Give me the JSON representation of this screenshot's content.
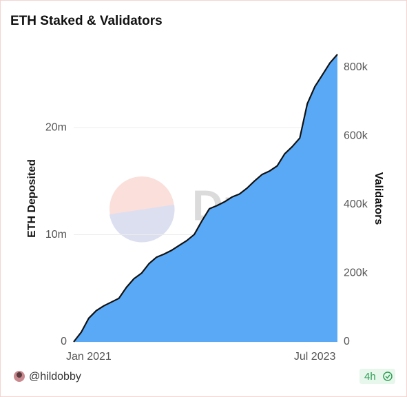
{
  "title": "ETH Staked & Validators",
  "watermark": "Dune",
  "footer": {
    "author": "@hildobby",
    "age": "4h"
  },
  "chart_data": {
    "type": "area",
    "ylabel": "ETH Deposited",
    "y2label": "Validators",
    "x": [
      "2020-11",
      "2020-12",
      "2021-01",
      "2021-02",
      "2021-03",
      "2021-04",
      "2021-05",
      "2021-06",
      "2021-07",
      "2021-08",
      "2021-09",
      "2021-10",
      "2021-11",
      "2021-12",
      "2022-01",
      "2022-02",
      "2022-03",
      "2022-04",
      "2022-05",
      "2022-06",
      "2022-07",
      "2022-08",
      "2022-09",
      "2022-10",
      "2022-11",
      "2022-12",
      "2023-01",
      "2023-02",
      "2023-03",
      "2023-04",
      "2023-05",
      "2023-06",
      "2023-07",
      "2023-08",
      "2023-09",
      "2023-10"
    ],
    "xlim": [
      "2020-11",
      "2023-10"
    ],
    "xticks": [
      {
        "value": "2021-01",
        "label": "Jan 2021"
      },
      {
        "value": "2023-07",
        "label": "Jul 2023"
      }
    ],
    "ylim": [
      0,
      28500000
    ],
    "yticks": [
      0,
      {
        "value": 10000000,
        "label": "10m"
      },
      {
        "value": 20000000,
        "label": "20m"
      }
    ],
    "y2lim": [
      0,
      890000
    ],
    "y2ticks": [
      0,
      {
        "value": 200000,
        "label": "200k"
      },
      {
        "value": 400000,
        "label": "400k"
      },
      {
        "value": 600000,
        "label": "600k"
      },
      {
        "value": 800000,
        "label": "800k"
      }
    ],
    "grid": true,
    "series": [
      {
        "color": "#5aa9f6",
        "values": [
          0,
          900000,
          2200000,
          2900000,
          3350000,
          3700000,
          4050000,
          5100000,
          5900000,
          6400000,
          7300000,
          7900000,
          8200000,
          8550000,
          9000000,
          9450000,
          10000000,
          11250000,
          12400000,
          12700000,
          13050000,
          13500000,
          13800000,
          14350000,
          15000000,
          15600000,
          15950000,
          16400000,
          17550000,
          18200000,
          19000000,
          22200000,
          23800000,
          24900000,
          26000000,
          26800000
        ]
      },
      {
        "color": "#111111",
        "axis": "y2",
        "values": [
          0,
          28000,
          69000,
          91000,
          105000,
          116000,
          127000,
          159000,
          184000,
          200000,
          228000,
          247000,
          256000,
          267000,
          281000,
          295000,
          313000,
          352000,
          388000,
          397000,
          408000,
          422000,
          431000,
          448000,
          469000,
          488000,
          498000,
          513000,
          548000,
          569000,
          594000,
          694000,
          744000,
          778000,
          813000,
          838000
        ]
      }
    ]
  }
}
